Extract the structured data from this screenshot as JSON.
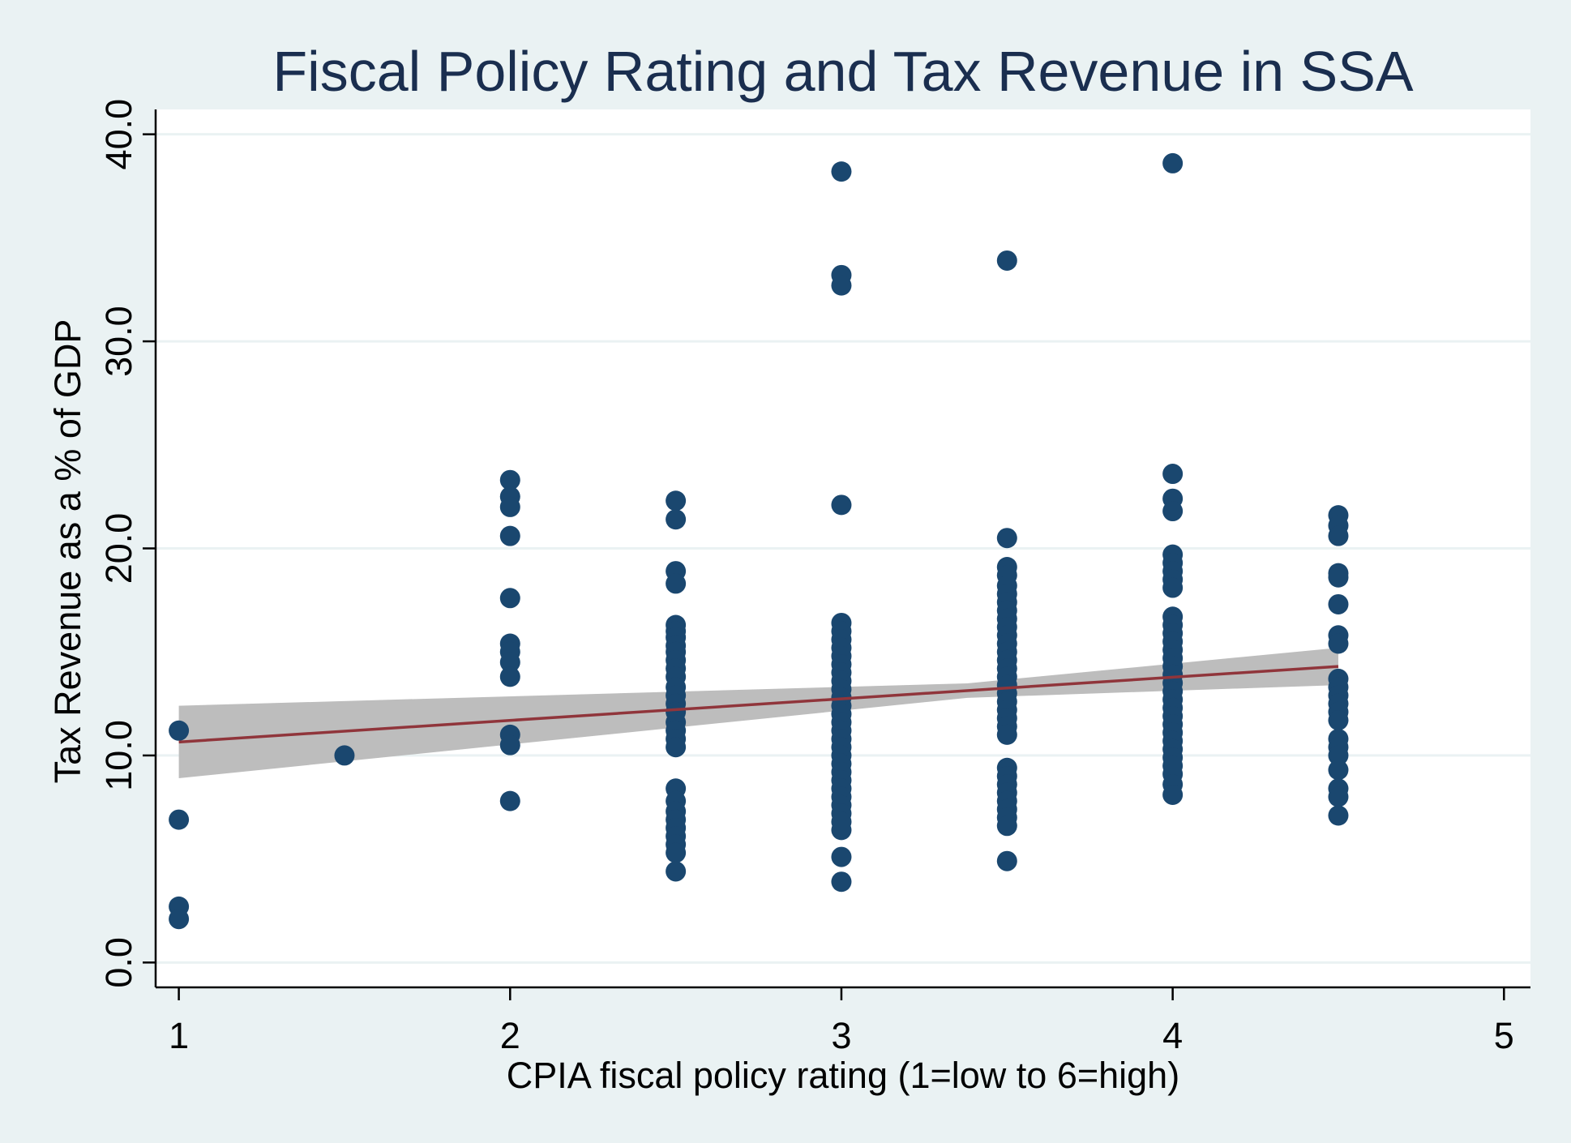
{
  "chart_data": {
    "type": "scatter",
    "title": "Fiscal Policy Rating and Tax Revenue in SSA",
    "xlabel": "CPIA fiscal policy rating (1=low to 6=high)",
    "ylabel": "Tax Revenue as a % of GDP",
    "xlim": [
      0.93,
      5.08
    ],
    "ylim": [
      -1.2,
      41.2
    ],
    "xticks": [
      1,
      2,
      3,
      4,
      5
    ],
    "yticks": [
      0,
      10,
      20,
      30,
      40
    ],
    "xtick_labels": [
      "1",
      "2",
      "3",
      "4",
      "5"
    ],
    "ytick_labels": [
      "0.0",
      "10.0",
      "20.0",
      "30.0",
      "40.0"
    ],
    "grid": true,
    "colors": {
      "background": "#eaf2f3",
      "plot_background": "#ffffff",
      "points": "#1a476f",
      "fit_line": "#90353b",
      "confidence_band": "#bdbdbd",
      "title": "#1a2e4f",
      "grid": "#eaf2f3"
    },
    "series": [
      {
        "name": "Tax revenue (% of GDP)",
        "points": [
          [
            1,
            11.2
          ],
          [
            1,
            6.9
          ],
          [
            1,
            2.7
          ],
          [
            1,
            2.1
          ],
          [
            1.5,
            10.0
          ],
          [
            2,
            23.3
          ],
          [
            2,
            22.5
          ],
          [
            2,
            22.0
          ],
          [
            2,
            20.6
          ],
          [
            2,
            17.6
          ],
          [
            2,
            15.4
          ],
          [
            2,
            15.0
          ],
          [
            2,
            14.5
          ],
          [
            2,
            13.8
          ],
          [
            2,
            11.0
          ],
          [
            2,
            10.5
          ],
          [
            2,
            7.8
          ],
          [
            2.5,
            22.3
          ],
          [
            2.5,
            21.4
          ],
          [
            2.5,
            18.9
          ],
          [
            2.5,
            18.3
          ],
          [
            2.5,
            16.3
          ],
          [
            2.5,
            16.0
          ],
          [
            2.5,
            15.7
          ],
          [
            2.5,
            15.3
          ],
          [
            2.5,
            15.0
          ],
          [
            2.5,
            14.6
          ],
          [
            2.5,
            14.2
          ],
          [
            2.5,
            13.8
          ],
          [
            2.5,
            13.3
          ],
          [
            2.5,
            12.9
          ],
          [
            2.5,
            12.5
          ],
          [
            2.5,
            12.1
          ],
          [
            2.5,
            11.6
          ],
          [
            2.5,
            11.2
          ],
          [
            2.5,
            10.8
          ],
          [
            2.5,
            10.4
          ],
          [
            2.5,
            8.4
          ],
          [
            2.5,
            7.8
          ],
          [
            2.5,
            7.3
          ],
          [
            2.5,
            6.9
          ],
          [
            2.5,
            6.5
          ],
          [
            2.5,
            6.1
          ],
          [
            2.5,
            5.7
          ],
          [
            2.5,
            5.3
          ],
          [
            2.5,
            4.4
          ],
          [
            3,
            38.2
          ],
          [
            3,
            33.2
          ],
          [
            3,
            32.7
          ],
          [
            3,
            22.1
          ],
          [
            3,
            16.4
          ],
          [
            3,
            16.0
          ],
          [
            3,
            15.6
          ],
          [
            3,
            15.2
          ],
          [
            3,
            14.8
          ],
          [
            3,
            14.4
          ],
          [
            3,
            14.0
          ],
          [
            3,
            13.6
          ],
          [
            3,
            13.2
          ],
          [
            3,
            12.8
          ],
          [
            3,
            12.4
          ],
          [
            3,
            12.0
          ],
          [
            3,
            11.6
          ],
          [
            3,
            11.2
          ],
          [
            3,
            10.8
          ],
          [
            3,
            10.4
          ],
          [
            3,
            10.0
          ],
          [
            3,
            9.6
          ],
          [
            3,
            9.2
          ],
          [
            3,
            8.8
          ],
          [
            3,
            8.4
          ],
          [
            3,
            8.0
          ],
          [
            3,
            7.6
          ],
          [
            3,
            7.2
          ],
          [
            3,
            6.8
          ],
          [
            3,
            6.4
          ],
          [
            3,
            5.1
          ],
          [
            3,
            3.9
          ],
          [
            3.5,
            33.9
          ],
          [
            3.5,
            20.5
          ],
          [
            3.5,
            19.1
          ],
          [
            3.5,
            18.7
          ],
          [
            3.5,
            18.2
          ],
          [
            3.5,
            17.8
          ],
          [
            3.5,
            17.4
          ],
          [
            3.5,
            17.0
          ],
          [
            3.5,
            16.6
          ],
          [
            3.5,
            16.2
          ],
          [
            3.5,
            15.8
          ],
          [
            3.5,
            15.4
          ],
          [
            3.5,
            15.0
          ],
          [
            3.5,
            14.6
          ],
          [
            3.5,
            14.2
          ],
          [
            3.5,
            13.8
          ],
          [
            3.5,
            13.4
          ],
          [
            3.5,
            13.0
          ],
          [
            3.5,
            12.6
          ],
          [
            3.5,
            12.2
          ],
          [
            3.5,
            11.8
          ],
          [
            3.5,
            11.4
          ],
          [
            3.5,
            11.0
          ],
          [
            3.5,
            9.4
          ],
          [
            3.5,
            9.0
          ],
          [
            3.5,
            8.6
          ],
          [
            3.5,
            8.2
          ],
          [
            3.5,
            7.8
          ],
          [
            3.5,
            7.4
          ],
          [
            3.5,
            7.0
          ],
          [
            3.5,
            6.6
          ],
          [
            3.5,
            4.9
          ],
          [
            4,
            38.6
          ],
          [
            4,
            23.6
          ],
          [
            4,
            22.4
          ],
          [
            4,
            21.8
          ],
          [
            4,
            19.7
          ],
          [
            4,
            19.3
          ],
          [
            4,
            18.9
          ],
          [
            4,
            18.5
          ],
          [
            4,
            18.1
          ],
          [
            4,
            16.7
          ],
          [
            4,
            16.3
          ],
          [
            4,
            15.9
          ],
          [
            4,
            15.5
          ],
          [
            4,
            15.1
          ],
          [
            4,
            14.7
          ],
          [
            4,
            14.3
          ],
          [
            4,
            13.9
          ],
          [
            4,
            13.5
          ],
          [
            4,
            13.1
          ],
          [
            4,
            12.7
          ],
          [
            4,
            12.3
          ],
          [
            4,
            11.9
          ],
          [
            4,
            11.5
          ],
          [
            4,
            11.1
          ],
          [
            4,
            10.7
          ],
          [
            4,
            10.3
          ],
          [
            4,
            9.9
          ],
          [
            4,
            9.5
          ],
          [
            4,
            9.1
          ],
          [
            4,
            8.6
          ],
          [
            4,
            8.1
          ],
          [
            4.5,
            21.6
          ],
          [
            4.5,
            21.1
          ],
          [
            4.5,
            20.6
          ],
          [
            4.5,
            18.8
          ],
          [
            4.5,
            18.6
          ],
          [
            4.5,
            17.3
          ],
          [
            4.5,
            15.8
          ],
          [
            4.5,
            15.4
          ],
          [
            4.5,
            13.7
          ],
          [
            4.5,
            13.3
          ],
          [
            4.5,
            12.9
          ],
          [
            4.5,
            12.5
          ],
          [
            4.5,
            12.1
          ],
          [
            4.5,
            11.7
          ],
          [
            4.5,
            10.8
          ],
          [
            4.5,
            10.4
          ],
          [
            4.5,
            10.0
          ],
          [
            4.5,
            9.3
          ],
          [
            4.5,
            8.4
          ],
          [
            4.5,
            8.0
          ],
          [
            4.5,
            7.1
          ]
        ]
      }
    ],
    "fit": {
      "type": "linear",
      "x_range": [
        1,
        4.5
      ],
      "y_start": 10.65,
      "y_end": 14.3,
      "ci_upper_start": 12.4,
      "ci_upper_end": 15.2,
      "ci_lower_start": 8.9,
      "ci_lower_end": 13.4,
      "ci_pivot_x": 3.38,
      "ci_pivot_halfwidth": 0.35
    }
  }
}
